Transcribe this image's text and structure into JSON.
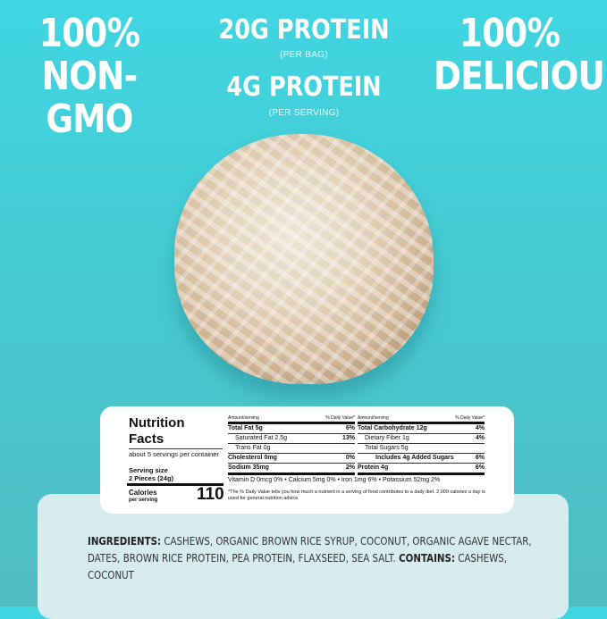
{
  "claims": {
    "left": [
      "100%",
      "NON-GMO"
    ],
    "right": [
      "100%",
      "DELICIOUS"
    ],
    "center": {
      "line1": "20G PROTEIN",
      "line1_note": "(PER BAG)",
      "line2": "4G PROTEIN",
      "line2_note": "(PER SERVING)"
    }
  },
  "nutrition": {
    "title1": "Nutrition",
    "title2": "Facts",
    "servings": "about 5 servings per container",
    "serving_size_label": "Serving size",
    "serving_size": "2 Pieces (24g)",
    "calories_label": "Calories",
    "calories_sub": "per serving",
    "calories": "110",
    "header_left": "Amount/serving",
    "header_right": "% Daily Value*",
    "left_rows": [
      {
        "label": "Total Fat 5g",
        "dv": "6%"
      },
      {
        "label": "Saturated Fat 2.5g",
        "dv": "13%"
      },
      {
        "label": "Trans Fat 0g",
        "dv": ""
      },
      {
        "label": "Cholesterol 0mg",
        "dv": "0%"
      },
      {
        "label": "Sodium 35mg",
        "dv": "2%"
      }
    ],
    "right_rows": [
      {
        "label": "Total Carbohydrate 12g",
        "dv": "4%"
      },
      {
        "label": "Dietary Fiber 1g",
        "dv": "4%"
      },
      {
        "label": "Total Sugars 5g",
        "dv": ""
      },
      {
        "label": "Includes 4g Added Sugars",
        "dv": "6%"
      },
      {
        "label": "Protein 4g",
        "dv": "6%"
      }
    ],
    "vitamins": "Vitamin D 0mcg 0%   •   Calcium 5mg 0%   •   Iron 1mg 6%   •   Potassium 52mg 2%",
    "footnote": "*The % Daily Value tells you how much a nutrient in a serving of food contributes to a daily diet. 2,000 calories a day is used for general nutrition advice."
  },
  "ingredients": {
    "label": "INGREDIENTS:",
    "text": " CASHEWS, ORGANIC BROWN RICE SYRUP, COCONUT, ORGANIC AGAVE NECTAR, DATES, BROWN RICE PROTEIN, PEA PROTEIN, FLAXSEED, SEA SALT. ",
    "contains_label": "CONTAINS:",
    "contains": " CASHEWS, COCONUT"
  }
}
